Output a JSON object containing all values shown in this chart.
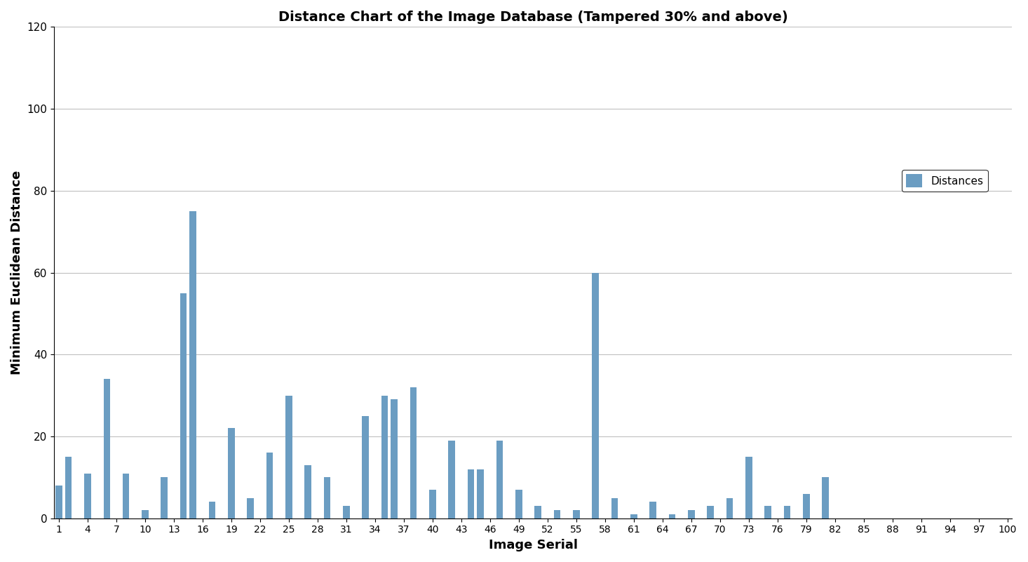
{
  "title": "Distance Chart of the Image Database (Tampered 30% and above)",
  "xlabel": "Image Serial",
  "ylabel": "Minimum Euclidean Distance",
  "legend_label": "Distances",
  "bar_color": "#6b9dc2",
  "ylim": [
    0,
    120
  ],
  "yticks": [
    0,
    20,
    40,
    60,
    80,
    100,
    120
  ],
  "xtick_positions": [
    1,
    4,
    7,
    10,
    13,
    16,
    19,
    22,
    25,
    28,
    31,
    34,
    37,
    40,
    43,
    46,
    49,
    52,
    55,
    58,
    61,
    64,
    67,
    70,
    73,
    76,
    79,
    82,
    85,
    88,
    91,
    94,
    97,
    100
  ],
  "xtick_labels": [
    "1",
    "4",
    "7",
    "10",
    "13",
    "16",
    "19",
    "22",
    "25",
    "28",
    "31",
    "34",
    "37",
    "40",
    "43",
    "46",
    "49",
    "52",
    "55",
    "58",
    "61",
    "64",
    "67",
    "70",
    "73",
    "76",
    "79",
    "82",
    "85",
    "88",
    "91",
    "94",
    "97",
    "100"
  ],
  "distances": [
    8,
    15,
    0,
    11,
    0,
    34,
    0,
    11,
    0,
    2,
    0,
    10,
    0,
    55,
    75,
    0,
    4,
    0,
    22,
    0,
    5,
    0,
    16,
    0,
    30,
    0,
    13,
    0,
    10,
    0,
    3,
    0,
    25,
    0,
    30,
    29,
    0,
    32,
    0,
    7,
    0,
    19,
    0,
    12,
    12,
    0,
    19,
    0,
    7,
    0,
    3,
    0,
    2,
    0,
    2,
    0,
    60,
    0,
    5,
    0,
    1,
    0,
    4,
    0,
    1,
    0,
    2,
    0,
    3,
    0,
    5,
    0,
    15,
    0,
    3,
    0,
    3,
    0,
    6,
    0,
    10
  ],
  "background_color": "#ffffff"
}
